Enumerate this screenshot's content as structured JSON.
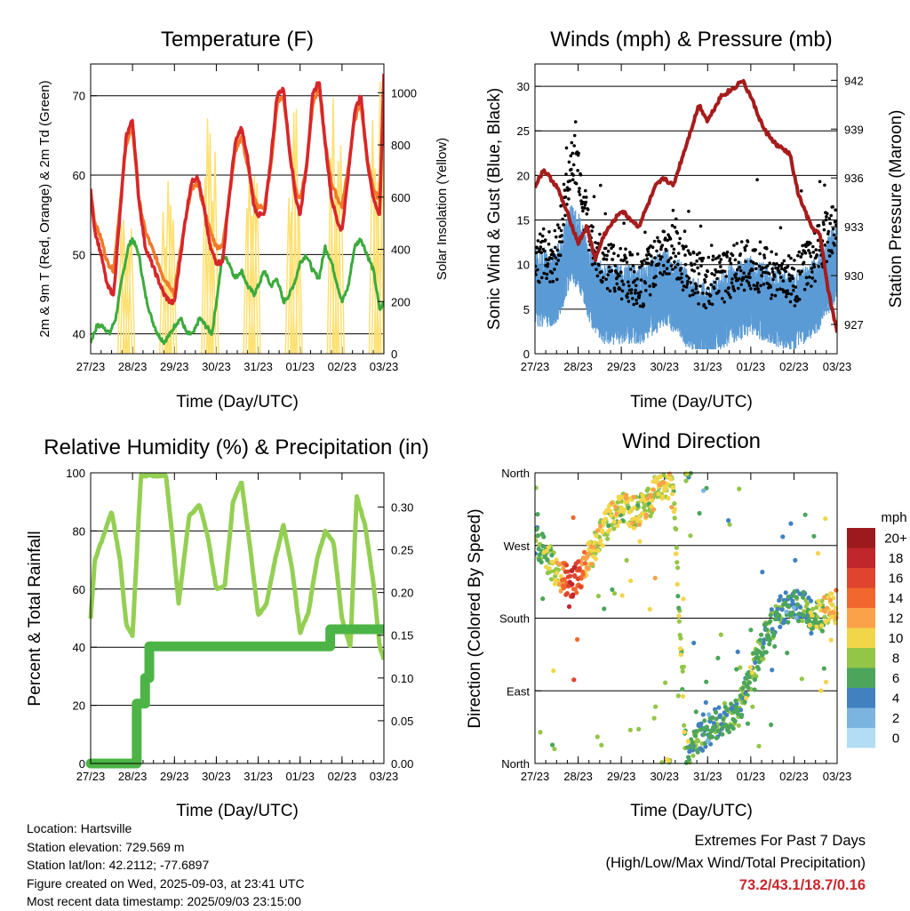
{
  "chart_data": [
    {
      "type": "line",
      "title": "Temperature (F)",
      "xlabel": "Time (Day/UTC)",
      "ylabel": "2m & 9m T (Red, Orange) & 2m Td (Green)",
      "y2label": "Solar Insolation (Yellow)",
      "x_ticks": [
        "27/23",
        "28/23",
        "29/23",
        "30/23",
        "31/23",
        "01/23",
        "02/23",
        "03/23"
      ],
      "y_ticks": [
        40,
        50,
        60,
        70
      ],
      "y2_ticks": [
        0,
        200,
        400,
        600,
        800,
        1000
      ],
      "ylim": [
        37.5,
        74
      ],
      "y2lim": [
        0,
        1110
      ],
      "grid": true,
      "colors": {
        "t2m": "#d7262b",
        "t9m": "#f07a2a",
        "td": "#3caa3c",
        "solar": "#ffe070"
      },
      "series": [
        {
          "key": "t2m",
          "x": [
            0,
            0.1,
            0.25,
            0.4,
            0.55,
            0.7,
            0.85,
            1.0,
            1.15,
            1.3,
            1.45,
            1.6,
            1.75,
            1.9,
            2.0,
            2.1,
            2.25,
            2.4,
            2.55,
            2.7,
            2.85,
            3.0,
            3.15,
            3.3,
            3.45,
            3.6,
            3.75,
            3.9,
            4.0,
            4.15,
            4.3,
            4.45,
            4.6,
            4.75,
            4.9,
            5.0,
            5.15,
            5.3,
            5.45,
            5.6,
            5.75,
            5.9,
            6.0,
            6.15,
            6.3,
            6.45,
            6.6,
            6.75,
            6.9,
            7.0
          ],
          "values": [
            58,
            53,
            50,
            46,
            45,
            55,
            65,
            67,
            57,
            51,
            49,
            47,
            45,
            44,
            44,
            48,
            54,
            59,
            60,
            56,
            51,
            49,
            49,
            57,
            64,
            66,
            62,
            56,
            55,
            55,
            62,
            70,
            71,
            63,
            57,
            55,
            61,
            70,
            72,
            64,
            57,
            54,
            53,
            60,
            68,
            70,
            62,
            57,
            55,
            73
          ]
        },
        {
          "key": "t9m",
          "x": [
            0,
            0.1,
            0.25,
            0.4,
            0.55,
            0.7,
            0.85,
            1.0,
            1.15,
            1.3,
            1.45,
            1.6,
            1.75,
            1.9,
            2.0,
            2.1,
            2.25,
            2.4,
            2.55,
            2.7,
            2.85,
            3.0,
            3.15,
            3.3,
            3.45,
            3.6,
            3.75,
            3.9,
            4.0,
            4.15,
            4.3,
            4.45,
            4.6,
            4.75,
            4.9,
            5.0,
            5.15,
            5.3,
            5.45,
            5.6,
            5.75,
            5.9,
            6.0,
            6.15,
            6.3,
            6.45,
            6.6,
            6.75,
            6.9,
            7.0
          ],
          "values": [
            58,
            54,
            52,
            49,
            48,
            56,
            64,
            66,
            57,
            53,
            51,
            49,
            47,
            46,
            45,
            49,
            54,
            58,
            59,
            56,
            53,
            51,
            51,
            57,
            63,
            65,
            61,
            57,
            56,
            56,
            61,
            69,
            70,
            63,
            58,
            57,
            61,
            69,
            71,
            64,
            59,
            57,
            56,
            61,
            67,
            69,
            62,
            58,
            57,
            72
          ]
        },
        {
          "key": "td",
          "x": [
            0,
            0.15,
            0.3,
            0.45,
            0.6,
            0.75,
            0.9,
            1.0,
            1.15,
            1.3,
            1.45,
            1.6,
            1.75,
            1.9,
            2.0,
            2.15,
            2.3,
            2.45,
            2.6,
            2.75,
            2.9,
            3.0,
            3.15,
            3.3,
            3.45,
            3.6,
            3.75,
            3.9,
            4.0,
            4.15,
            4.3,
            4.45,
            4.6,
            4.75,
            4.9,
            5.0,
            5.15,
            5.3,
            5.45,
            5.6,
            5.75,
            5.9,
            6.0,
            6.15,
            6.3,
            6.45,
            6.6,
            6.75,
            6.9,
            7.0
          ],
          "values": [
            39,
            41,
            41,
            40,
            42,
            47,
            51,
            52,
            50,
            45,
            42,
            40,
            39,
            40,
            41,
            42,
            40,
            40,
            42,
            41,
            40,
            44,
            50,
            49,
            47,
            48,
            46,
            45,
            46,
            48,
            46,
            47,
            44,
            45,
            47,
            49,
            50,
            48,
            47,
            51,
            49,
            46,
            44,
            46,
            51,
            52,
            50,
            48,
            43,
            44
          ]
        }
      ],
      "solar_peaks": [
        {
          "day": 0.85,
          "value": 640
        },
        {
          "day": 1.85,
          "value": 700
        },
        {
          "day": 2.85,
          "value": 1000
        },
        {
          "day": 3.85,
          "value": 850
        },
        {
          "day": 4.85,
          "value": 950
        },
        {
          "day": 5.85,
          "value": 1000
        },
        {
          "day": 6.85,
          "value": 1050
        }
      ]
    },
    {
      "type": "scatter",
      "title": "Winds (mph) & Pressure (mb)",
      "xlabel": "Time (Day/UTC)",
      "ylabel": "Sonic Wind & Gust (Blue, Black)",
      "y2label": "Station Pressure (Maroon)",
      "x_ticks": [
        "27/23",
        "28/23",
        "29/23",
        "30/23",
        "31/23",
        "01/23",
        "02/23",
        "03/23"
      ],
      "y_ticks": [
        0,
        5,
        10,
        15,
        20,
        25,
        30
      ],
      "y2_ticks": [
        927,
        930,
        933,
        936,
        939,
        942
      ],
      "ylim": [
        0,
        32.5
      ],
      "y2lim": [
        925.2,
        943
      ],
      "grid": true,
      "colors": {
        "wind": "#5b9bd5",
        "gust": "#000000",
        "pressure": "#a61c1c"
      },
      "wind_profile": {
        "x": [
          0,
          0.5,
          0.85,
          1.0,
          1.3,
          1.6,
          2.0,
          2.5,
          3.0,
          3.3,
          3.6,
          4.0,
          4.5,
          5.0,
          5.5,
          6.0,
          6.5,
          7.0
        ],
        "values": [
          8,
          8,
          13,
          12,
          8,
          6,
          6,
          6,
          8,
          7,
          5,
          4,
          6,
          7,
          6,
          5,
          7,
          11
        ]
      },
      "gust_profile": {
        "x": [
          0,
          0.5,
          0.85,
          1.0,
          1.3,
          1.6,
          2.0,
          2.5,
          3.0,
          3.3,
          3.6,
          4.0,
          4.5,
          5.0,
          5.5,
          6.0,
          6.5,
          7.0
        ],
        "values": [
          11,
          11,
          22,
          21,
          12,
          10,
          9,
          8,
          12,
          11,
          9,
          8,
          9,
          10,
          9,
          8,
          11,
          15
        ]
      },
      "pressure": {
        "x": [
          0,
          0.2,
          0.5,
          0.8,
          1.0,
          1.2,
          1.4,
          1.6,
          2.0,
          2.4,
          2.8,
          3.0,
          3.2,
          3.5,
          3.8,
          4.0,
          4.3,
          4.6,
          4.8,
          5.0,
          5.3,
          5.6,
          5.9,
          6.1,
          6.4,
          6.6,
          6.8,
          7.0
        ],
        "values": [
          935.5,
          936.5,
          935.5,
          933.5,
          932,
          933,
          931,
          932.5,
          934,
          933,
          935.5,
          936,
          935.5,
          938,
          940.5,
          939.5,
          941,
          941.5,
          942,
          941,
          939,
          938,
          937.5,
          935,
          933,
          932.5,
          929,
          926.5
        ]
      },
      "sample_count": 1400
    },
    {
      "type": "line",
      "title": "Relative Humidity (%) & Precipitation (in)",
      "xlabel": "Time (Day/UTC)",
      "ylabel": "Percent & Total Rainfall",
      "x_ticks": [
        "27/23",
        "28/23",
        "29/23",
        "30/23",
        "31/23",
        "01/23",
        "02/23",
        "03/23"
      ],
      "y_ticks": [
        0,
        20,
        40,
        60,
        80,
        100
      ],
      "y2_ticks": [
        "0.00",
        "0.05",
        "0.10",
        "0.15",
        "0.20",
        "0.25",
        "0.30"
      ],
      "ylim": [
        0,
        100
      ],
      "y2lim": [
        0,
        0.34
      ],
      "grid": true,
      "colors": {
        "rh": "#94cf53",
        "precip": "#4cb446"
      },
      "series": [
        {
          "key": "rh",
          "x": [
            0,
            0.1,
            0.3,
            0.5,
            0.7,
            0.85,
            1.0,
            1.2,
            1.35,
            1.6,
            1.8,
            1.95,
            2.1,
            2.35,
            2.6,
            2.8,
            3.0,
            3.2,
            3.4,
            3.6,
            3.8,
            4.0,
            4.2,
            4.4,
            4.6,
            4.8,
            5.0,
            5.2,
            5.4,
            5.6,
            5.8,
            6.0,
            6.2,
            6.35,
            6.55,
            6.75,
            6.9,
            7.0
          ],
          "values": [
            50,
            70,
            78,
            87,
            70,
            48,
            44,
            99,
            99,
            99,
            99,
            78,
            55,
            85,
            89,
            78,
            60,
            61,
            90,
            97,
            75,
            51,
            55,
            70,
            82,
            68,
            45,
            52,
            70,
            80,
            76,
            50,
            40,
            92,
            82,
            62,
            40,
            36
          ]
        },
        {
          "key": "precip",
          "x": [
            0,
            1.05,
            1.1,
            1.2,
            1.3,
            1.4,
            5.7,
            5.72,
            7.0
          ],
          "values": [
            0.0,
            0.0,
            0.07,
            0.07,
            0.1,
            0.137,
            0.137,
            0.157,
            0.157
          ]
        }
      ]
    },
    {
      "type": "scatter",
      "title": "Wind Direction",
      "xlabel": "Time (Day/UTC)",
      "ylabel": "Direction (Colored By Speed)",
      "x_ticks": [
        "27/23",
        "28/23",
        "29/23",
        "30/23",
        "31/23",
        "01/23",
        "02/23",
        "03/23"
      ],
      "y_ticks": [
        "North",
        "East",
        "South",
        "West",
        "North"
      ],
      "y_tick_values": [
        0,
        90,
        180,
        270,
        360
      ],
      "ylim": [
        0,
        360
      ],
      "grid": true,
      "colorbar": {
        "title": "mph",
        "labels": [
          "20+",
          "18",
          "16",
          "14",
          "12",
          "10",
          "8",
          "6",
          "4",
          "2",
          "0"
        ],
        "colors": [
          "#9c1a1e",
          "#c0262b",
          "#e0442e",
          "#f1672e",
          "#fba14a",
          "#f2d64a",
          "#93c546",
          "#4ca55b",
          "#4181c0",
          "#7cb4e0",
          "#b3dcf5"
        ]
      },
      "direction_profile": {
        "x": [
          0,
          0.3,
          0.6,
          0.9,
          1.1,
          1.4,
          1.7,
          2.0,
          2.3,
          2.6,
          2.9,
          3.2,
          3.5,
          3.8,
          4.1,
          4.4,
          4.7,
          5.0,
          5.3,
          5.6,
          6.0,
          6.3,
          6.6,
          6.9,
          7.0
        ],
        "values": [
          280,
          255,
          230,
          225,
          240,
          270,
          300,
          315,
          310,
          320,
          345,
          350,
          5,
          30,
          45,
          55,
          60,
          110,
          150,
          185,
          200,
          190,
          180,
          200,
          175
        ]
      },
      "speed_profile": {
        "x": [
          0,
          0.5,
          0.8,
          1.0,
          1.3,
          1.6,
          2.0,
          2.5,
          3.0,
          3.5,
          4.0,
          4.5,
          5.0,
          5.5,
          6.0,
          6.5,
          7.0
        ],
        "values": [
          7,
          9,
          16,
          15,
          10,
          9,
          9,
          9,
          10,
          7,
          5,
          6,
          7,
          6,
          5,
          8,
          11
        ]
      },
      "sample_count": 900
    }
  ],
  "info": {
    "location": "Location: Hartsville",
    "elevation": "Station elevation: 729.569 m",
    "latlon": "Station lat/lon: 42.2112; -77.6897",
    "created": "Figure created on Wed, 2025-09-03, at 23:41 UTC",
    "recent": "Most recent data timestamp: 2025/09/03 23:15:00"
  },
  "extremes": {
    "title": "Extremes For Past 7 Days",
    "subtitle": "(High/Low/Max Wind/Total Precipitation)",
    "values": "73.2/43.1/18.7/0.16"
  }
}
